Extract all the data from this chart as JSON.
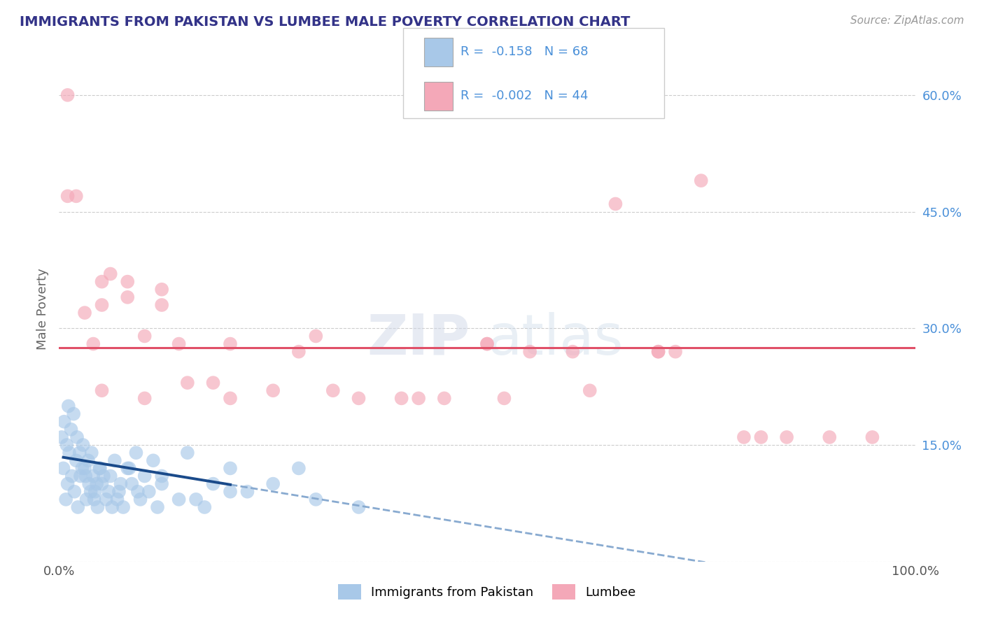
{
  "title": "IMMIGRANTS FROM PAKISTAN VS LUMBEE MALE POVERTY CORRELATION CHART",
  "source": "Source: ZipAtlas.com",
  "ylabel": "Male Poverty",
  "legend_label1": "Immigrants from Pakistan",
  "legend_label2": "Lumbee",
  "r1": -0.158,
  "n1": 68,
  "r2": -0.002,
  "n2": 44,
  "color_blue": "#a8c8e8",
  "color_pink": "#f4a8b8",
  "color_line_blue": "#1a4a8a",
  "color_line_pink": "#e05068",
  "color_dashed": "#88aad0",
  "xlim": [
    0,
    100
  ],
  "ylim": [
    0,
    65
  ],
  "ytick_vals": [
    0,
    15,
    30,
    45,
    60
  ],
  "watermark": "ZIPatlas",
  "title_color": "#333388",
  "axis_label_color": "#666666",
  "tick_color_right": "#4a90d9",
  "background_color": "#ffffff",
  "grid_color": "#cccccc",
  "blue_scatter_x": [
    0.5,
    0.8,
    1.0,
    1.2,
    1.5,
    1.8,
    2.0,
    2.2,
    2.5,
    2.8,
    3.0,
    3.2,
    3.5,
    3.8,
    4.0,
    4.2,
    4.5,
    4.8,
    5.0,
    5.5,
    6.0,
    6.5,
    7.0,
    7.5,
    8.0,
    8.5,
    9.0,
    9.5,
    10.0,
    10.5,
    11.0,
    11.5,
    12.0,
    0.3,
    0.6,
    0.9,
    1.1,
    1.4,
    1.7,
    2.1,
    2.4,
    2.7,
    3.1,
    3.4,
    3.7,
    4.1,
    4.4,
    4.7,
    5.2,
    5.8,
    6.2,
    6.8,
    7.2,
    8.2,
    9.2,
    14.0,
    17.0,
    20.0,
    25.0,
    30.0,
    35.0,
    20.0,
    15.0,
    18.0,
    22.0,
    12.0,
    16.0,
    28.0
  ],
  "blue_scatter_y": [
    12,
    8,
    10,
    14,
    11,
    9,
    13,
    7,
    11,
    15,
    12,
    8,
    10,
    14,
    11,
    9,
    7,
    12,
    10,
    8,
    11,
    13,
    9,
    7,
    12,
    10,
    14,
    8,
    11,
    9,
    13,
    7,
    10,
    16,
    18,
    15,
    20,
    17,
    19,
    16,
    14,
    12,
    11,
    13,
    9,
    8,
    10,
    12,
    11,
    9,
    7,
    8,
    10,
    12,
    9,
    8,
    7,
    9,
    10,
    8,
    7,
    12,
    14,
    10,
    9,
    11,
    8,
    12
  ],
  "pink_scatter_x": [
    1,
    1,
    2,
    4,
    3,
    6,
    10,
    14,
    20,
    28,
    40,
    50,
    60,
    70,
    80,
    90,
    35,
    45,
    55,
    65,
    75,
    5,
    8,
    12,
    18,
    25,
    32,
    42,
    52,
    62,
    72,
    82,
    5,
    10,
    15,
    20,
    5,
    8,
    12,
    30,
    50,
    70,
    85,
    95
  ],
  "pink_scatter_y": [
    60,
    47,
    47,
    28,
    32,
    37,
    29,
    28,
    28,
    27,
    21,
    28,
    27,
    27,
    16,
    16,
    21,
    21,
    27,
    46,
    49,
    36,
    36,
    35,
    23,
    22,
    22,
    21,
    21,
    22,
    27,
    16,
    22,
    21,
    23,
    21,
    33,
    34,
    33,
    29,
    28,
    27,
    16,
    16
  ],
  "pink_mean_y": 27.5,
  "blue_solid_x0": 0.5,
  "blue_solid_x1": 20.0,
  "blue_dashed_x0": 20.0,
  "blue_dashed_x1": 100.0,
  "blue_reg_slope": -0.18,
  "blue_reg_intercept": 13.5
}
